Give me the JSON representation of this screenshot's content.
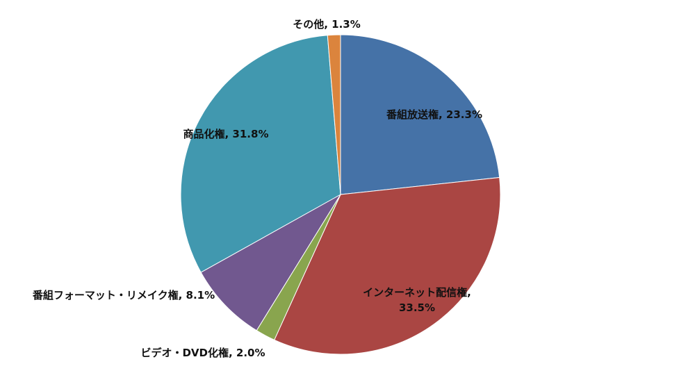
{
  "chart_data": {
    "type": "pie",
    "values": [
      23.3,
      33.5,
      2.0,
      8.1,
      31.8,
      1.3
    ],
    "value_labels": [
      "番組放送権, 23.3%",
      "インターネット配信権, 33.5%",
      "ビデオ・DVD化権, 2.0%",
      "番組フォーマット・リメイク権, 8.1%",
      "商品化権, 31.8%",
      "その他, 1.3%"
    ],
    "colors": [
      "#4572a7",
      "#aa4643",
      "#89a54e",
      "#71588f",
      "#4198af",
      "#db843d"
    ]
  }
}
